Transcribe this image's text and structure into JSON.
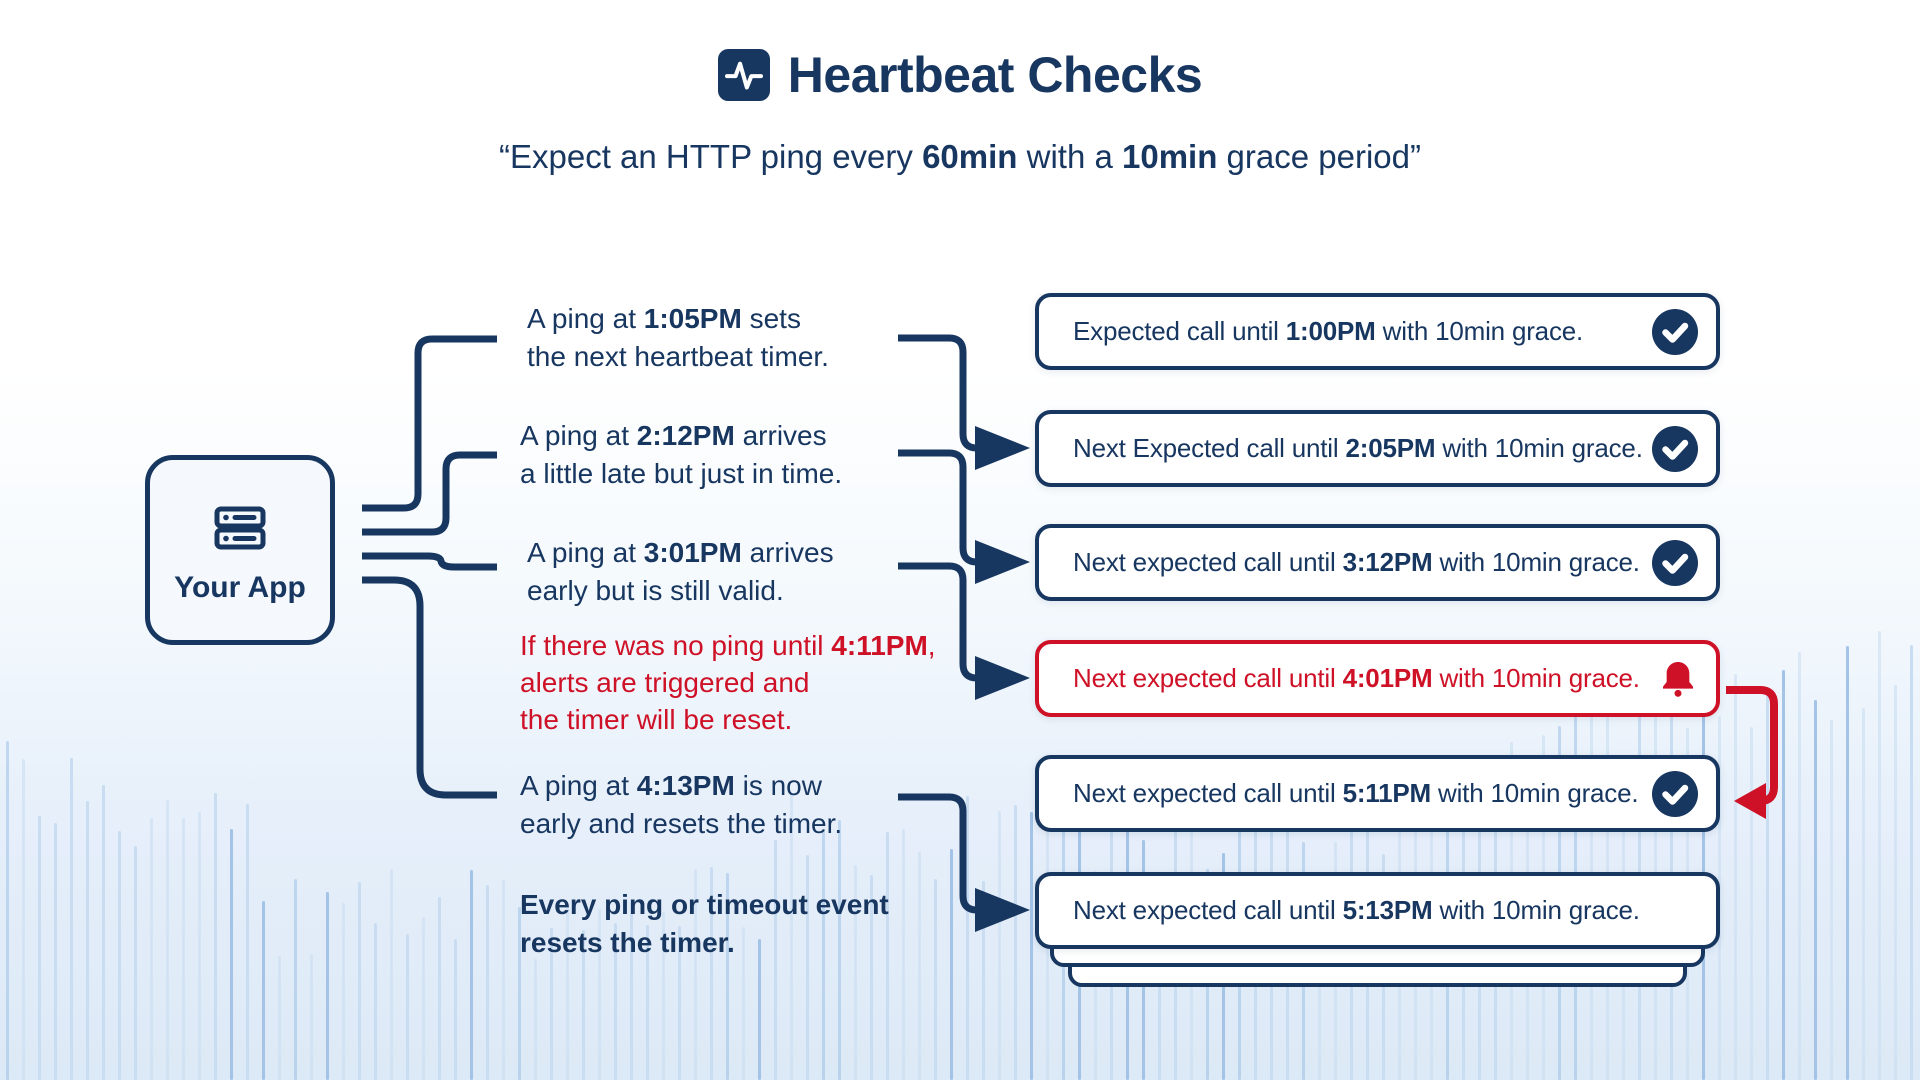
{
  "header": {
    "title": "Heartbeat Checks",
    "title_icon": "activity-icon",
    "subtitle": {
      "p1": "“Expect an HTTP ping every ",
      "b1": "60min",
      "p2": " with a ",
      "b2": "10min",
      "p3": " grace period”"
    }
  },
  "app": {
    "label": "Your App",
    "icon": "server-icon"
  },
  "notes": [
    {
      "l1a": "A ping at ",
      "l1b": "1:05PM",
      "l1c": " sets",
      "l2": "the next heartbeat timer.",
      "color": "navy"
    },
    {
      "l1a": "A ping at ",
      "l1b": "2:12PM",
      "l1c": " arrives",
      "l2": "a little late but just in time.",
      "color": "navy"
    },
    {
      "l1a": "A ping at ",
      "l1b": "3:01PM",
      "l1c": " arrives",
      "l2": "early but is still valid.",
      "color": "navy"
    },
    {
      "l1a": "If there was no ping until ",
      "l1b": "4:11PM",
      "l1c": ",",
      "l2": "alerts are triggered and",
      "l3": "the timer will be reset.",
      "color": "red"
    },
    {
      "l1a": "A ping at ",
      "l1b": "4:13PM",
      "l1c": " is now",
      "l2": "early and resets the timer.",
      "color": "navy"
    },
    {
      "l1a": "Every ping or timeout event",
      "l1b": "",
      "l1c": "",
      "l2": "resets the timer.",
      "color": "navy",
      "emphasis": "bold"
    }
  ],
  "boxes": [
    {
      "pre": "Expected call until ",
      "time": "1:00PM",
      "post": " with 10min grace.",
      "icon": "check",
      "status": "ok"
    },
    {
      "pre": "Next Expected call until ",
      "time": "2:05PM",
      "post": " with 10min grace.",
      "icon": "check",
      "status": "ok"
    },
    {
      "pre": "Next expected call until ",
      "time": "3:12PM",
      "post": " with 10min grace.",
      "icon": "check",
      "status": "ok"
    },
    {
      "pre": "Next expected call until ",
      "time": "4:01PM",
      "post": " with 10min grace.",
      "icon": "bell",
      "status": "alert"
    },
    {
      "pre": "Next expected call until ",
      "time": "5:11PM",
      "post": " with 10min grace.",
      "icon": "check",
      "status": "ok"
    },
    {
      "pre": "Next expected call until ",
      "time": "5:13PM",
      "post": " with 10min grace.",
      "icon": "none",
      "status": "pending"
    }
  ],
  "colors": {
    "navy": "#173660",
    "red": "#ce1126",
    "box_bg": "#ffffff",
    "app_bg": "#f5f9fd",
    "wave_light": "#c9ddf2",
    "wave_dark": "#a3c4e7"
  }
}
